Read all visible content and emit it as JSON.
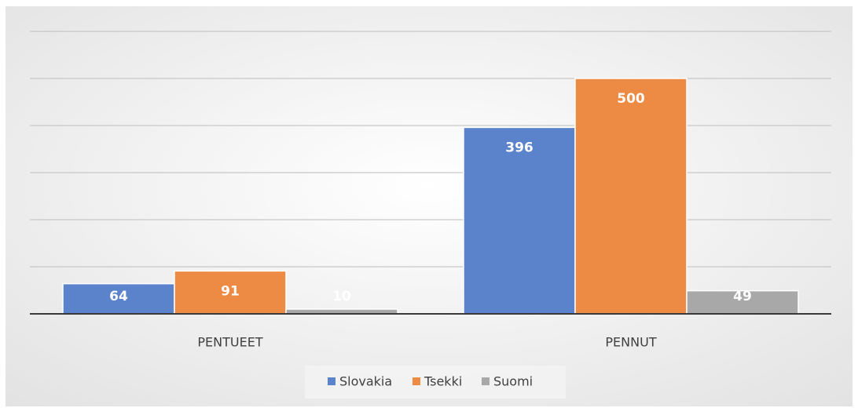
{
  "chart_data": {
    "type": "bar",
    "categories": [
      "PENTUEET",
      "PENNUT"
    ],
    "series": [
      {
        "name": "Slovakia",
        "color": "#5a83cc",
        "values": [
          64,
          396
        ]
      },
      {
        "name": "Tsekki",
        "color": "#ed8a44",
        "values": [
          91,
          500
        ]
      },
      {
        "name": "Suomi",
        "color": "#a8a8a8",
        "values": [
          10,
          49
        ]
      }
    ],
    "ylim": [
      0,
      600
    ],
    "yticks": [
      0,
      100,
      200,
      300,
      400,
      500,
      600
    ],
    "grid": true,
    "legend": "bottom"
  }
}
